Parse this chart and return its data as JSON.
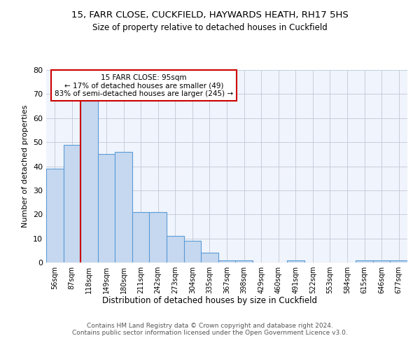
{
  "title1": "15, FARR CLOSE, CUCKFIELD, HAYWARDS HEATH, RH17 5HS",
  "title2": "Size of property relative to detached houses in Cuckfield",
  "xlabel": "Distribution of detached houses by size in Cuckfield",
  "ylabel": "Number of detached properties",
  "footer": "Contains HM Land Registry data © Crown copyright and database right 2024.\nContains public sector information licensed under the Open Government Licence v3.0.",
  "categories": [
    "56sqm",
    "87sqm",
    "118sqm",
    "149sqm",
    "180sqm",
    "211sqm",
    "242sqm",
    "273sqm",
    "304sqm",
    "335sqm",
    "367sqm",
    "398sqm",
    "429sqm",
    "460sqm",
    "491sqm",
    "522sqm",
    "553sqm",
    "584sqm",
    "615sqm",
    "646sqm",
    "677sqm"
  ],
  "values": [
    39,
    49,
    68,
    45,
    46,
    21,
    21,
    11,
    9,
    4,
    1,
    1,
    0,
    0,
    1,
    0,
    0,
    0,
    1,
    1,
    1
  ],
  "bar_color": "#c5d8f0",
  "bar_edge_color": "#5b9bd5",
  "vline_x": 1.5,
  "vline_color": "#cc0000",
  "annotation_title": "15 FARR CLOSE: 95sqm",
  "annotation_line2": "← 17% of detached houses are smaller (49)",
  "annotation_line3": "83% of semi-detached houses are larger (245) →",
  "annotation_box_color": "#ffffff",
  "annotation_box_edge": "#cc0000",
  "ylim": [
    0,
    80
  ],
  "yticks": [
    0,
    10,
    20,
    30,
    40,
    50,
    60,
    70,
    80
  ],
  "background_color": "#f0f4fc",
  "plot_bg_color": "#f0f4fc"
}
